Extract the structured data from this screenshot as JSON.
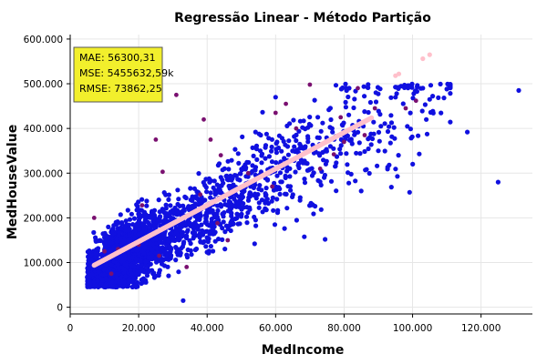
{
  "chart_data": {
    "type": "scatter",
    "title": "Regressão Linear - Método Partição",
    "xlabel": "MedIncome",
    "ylabel": "MedHouseValue",
    "xlim": [
      0,
      135000
    ],
    "ylim": [
      -15000,
      610000
    ],
    "x_ticks": [
      "0",
      "20.000",
      "40.000",
      "60.000",
      "80.000",
      "100.000",
      "120.000"
    ],
    "x_tick_values": [
      0,
      20000,
      40000,
      60000,
      80000,
      100000,
      120000
    ],
    "y_ticks": [
      "0",
      "100.000",
      "200.000",
      "300.000",
      "400.000",
      "500.000",
      "600.000"
    ],
    "y_tick_values": [
      0,
      100000,
      200000,
      300000,
      400000,
      500000,
      600000
    ],
    "grid": true,
    "colors": {
      "observed": "#1010e0",
      "test": "#7a1070",
      "predicted": "#ffc0cb",
      "annotation_bg": "#f2ef2c",
      "annotation_border": "#555555"
    },
    "annotation": {
      "lines": [
        "MAE: 56300,31",
        "MSE: 5455632,59k",
        "RMSE: 73862,25"
      ],
      "position": "top-left"
    },
    "series": [
      {
        "role": "observed",
        "cluster": {
          "x_range": [
            5000,
            111000
          ],
          "y_cap": 500000,
          "slope": 4.2,
          "intercept": 45000,
          "spread": 65000
        },
        "points": [
          [
            131000,
            485000
          ],
          [
            125000,
            280000
          ],
          [
            116000,
            392000
          ],
          [
            111000,
            492000
          ],
          [
            110000,
            488000
          ],
          [
            105000,
            465000
          ],
          [
            104000,
            420000
          ],
          [
            95000,
            470000
          ],
          [
            33000,
            15000
          ],
          [
            8000,
            60000
          ],
          [
            90000,
            350000
          ],
          [
            85000,
            260000
          ],
          [
            60000,
            470000
          ]
        ]
      },
      {
        "role": "test",
        "points": [
          [
            12000,
            75000
          ],
          [
            14000,
            130000
          ],
          [
            20000,
            140000
          ],
          [
            26000,
            115000
          ],
          [
            21000,
            228000
          ],
          [
            27000,
            303000
          ],
          [
            39000,
            420000
          ],
          [
            41000,
            375000
          ],
          [
            31000,
            475000
          ],
          [
            60000,
            435000
          ],
          [
            63000,
            455000
          ],
          [
            70000,
            498000
          ],
          [
            59000,
            270000
          ],
          [
            73000,
            310000
          ],
          [
            77000,
            342000
          ],
          [
            86000,
            385000
          ],
          [
            89000,
            445000
          ],
          [
            101000,
            462000
          ],
          [
            84000,
            490000
          ],
          [
            34000,
            90000
          ],
          [
            46000,
            150000
          ],
          [
            38000,
            252000
          ],
          [
            52000,
            300000
          ],
          [
            43000,
            188000
          ],
          [
            25000,
            375000
          ],
          [
            66000,
            400000
          ],
          [
            79000,
            425000
          ],
          [
            98000,
            445000
          ],
          [
            7000,
            200000
          ],
          [
            10000,
            125000
          ],
          [
            44000,
            340000
          ],
          [
            80000,
            370000
          ]
        ]
      },
      {
        "role": "predicted",
        "line": {
          "x_start": 7000,
          "x_end": 88000,
          "slope": 4.07,
          "intercept": 65500
        },
        "outliers": [
          [
            95000,
            518000
          ],
          [
            96000,
            522000
          ],
          [
            103000,
            556000
          ],
          [
            105000,
            565000
          ]
        ]
      }
    ]
  }
}
